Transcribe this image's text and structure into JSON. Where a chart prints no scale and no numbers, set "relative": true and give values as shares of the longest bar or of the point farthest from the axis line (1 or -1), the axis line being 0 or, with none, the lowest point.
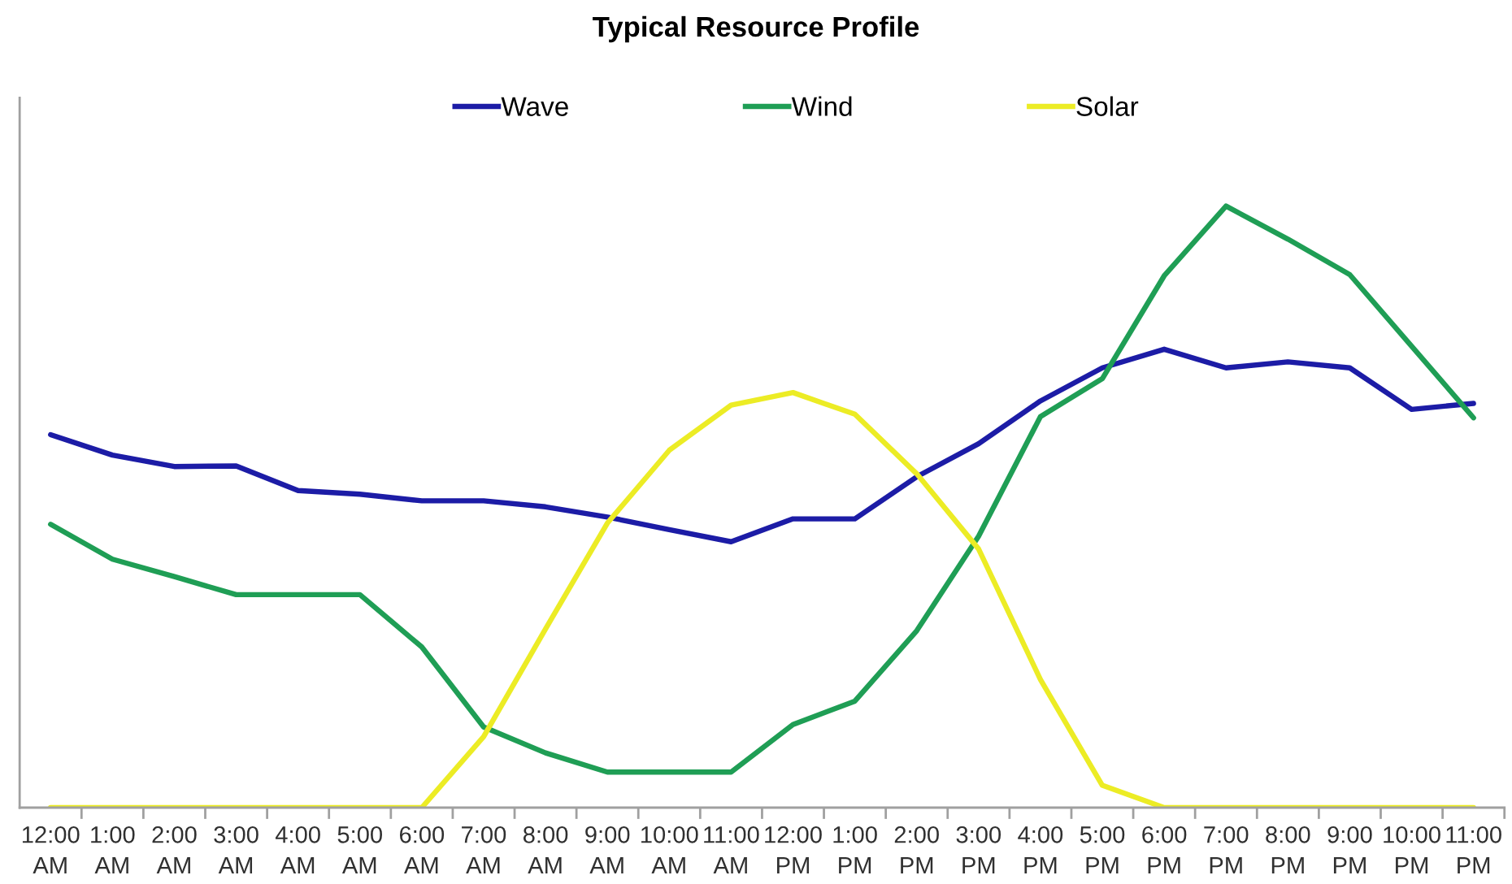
{
  "chart_data": {
    "type": "line",
    "title": "Typical Resource Profile",
    "relative": true,
    "legend": "top",
    "line_style": "solid",
    "categories": [
      "12:00 AM",
      "1:00 AM",
      "2:00 AM",
      "3:00 AM",
      "4:00 AM",
      "5:00 AM",
      "6:00 AM",
      "7:00 AM",
      "8:00 AM",
      "9:00 AM",
      "10:00 AM",
      "11:00 AM",
      "12:00 PM",
      "1:00 PM",
      "2:00 PM",
      "3:00 PM",
      "4:00 PM",
      "5:00 PM",
      "6:00 PM",
      "7:00 PM",
      "8:00 PM",
      "9:00 PM",
      "10:00 PM",
      "11:00 PM"
    ],
    "series": [
      {
        "name": "Wave",
        "color": "#1c1ca6",
        "values": [
          0.62,
          0.586,
          0.567,
          0.568,
          0.527,
          0.521,
          0.51,
          0.51,
          0.5,
          0.483,
          0.462,
          0.442,
          0.48,
          0.48,
          0.55,
          0.605,
          0.676,
          0.731,
          0.762,
          0.731,
          0.741,
          0.731,
          0.662,
          0.672
        ]
      },
      {
        "name": "Wind",
        "color": "#1f9e55",
        "values": [
          0.471,
          0.413,
          0.384,
          0.354,
          0.354,
          0.354,
          0.267,
          0.134,
          0.091,
          0.059,
          0.059,
          0.059,
          0.138,
          0.177,
          0.294,
          0.451,
          0.65,
          0.713,
          0.884,
          1,
          0.945,
          0.886,
          0.767,
          0.648
        ]
      },
      {
        "name": "Solar",
        "color": "#ecec25",
        "values": [
          0,
          0,
          0,
          0,
          0,
          0,
          0,
          0.118,
          0.297,
          0.473,
          0.594,
          0.669,
          0.69,
          0.654,
          0.555,
          0.43,
          0.213,
          0.037,
          0,
          0,
          0,
          0,
          0,
          0
        ]
      }
    ]
  }
}
